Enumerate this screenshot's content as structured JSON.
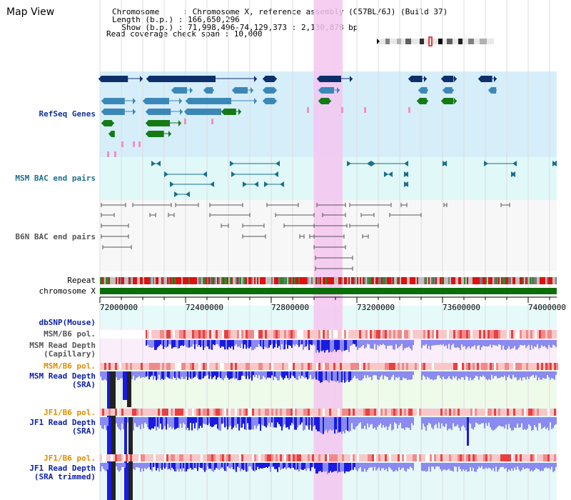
{
  "view": {
    "title": "Map View"
  },
  "info": {
    "line1": "Chromosome     : Chromosome X, reference assembly (C57BL/6J) (Build 37)",
    "line2": "Length (b.p.) : 166,650,296",
    "line3": "  Show (b.p.) : 71,998,496-74,129,373 : 2,130,878 bp",
    "line4": "Read coverage check span : 10,000"
  },
  "tracks": {
    "refseq": "RefSeq Genes",
    "msm_bac": "MSM BAC end pairs",
    "b6n_bac": "B6N BAC end pairs",
    "repeat": "Repeat",
    "chromosome": "chromosome X",
    "dbsnp": "dbSNP(Mouse)",
    "msm_pol_1": "MSM/B6 pol.",
    "msm_depth_cap_1": "MSM Read Depth",
    "msm_depth_cap_2": "(Capillary)",
    "msm_pol_2": "MSM/B6 pol.",
    "msm_depth_sra_1": "MSM Read Depth",
    "msm_depth_sra_2": "(SRA)",
    "jf1_pol_1": "JF1/B6 pol.",
    "jf1_depth_sra_1": "JF1 Read Depth",
    "jf1_depth_sra_2": "(SRA)",
    "jf1_pol_2": "JF1/B6 pol.",
    "jf1_depth_trim_1": "JF1 Read Depth",
    "jf1_depth_trim_2": "(SRA trimmed)"
  },
  "axis": {
    "ticks": [
      "72000000",
      "72400000",
      "72800000",
      "73200000",
      "73600000",
      "74000000"
    ]
  },
  "colors": {
    "gene_dark": "#0f2f6b",
    "gene_mid": "#3b88b8",
    "gene_green": "#157a15",
    "highlight": "#f5c6f0",
    "chromosome": "#0a6e0a",
    "depth": "#3a3ae8"
  }
}
